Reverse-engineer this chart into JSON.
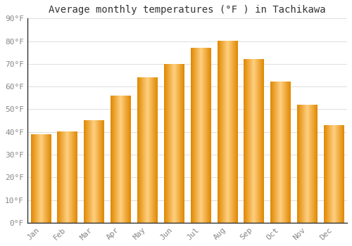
{
  "title": "Average monthly temperatures (°F ) in Tachikawa",
  "months": [
    "Jan",
    "Feb",
    "Mar",
    "Apr",
    "May",
    "Jun",
    "Jul",
    "Aug",
    "Sep",
    "Oct",
    "Nov",
    "Dec"
  ],
  "values": [
    39,
    40,
    45,
    56,
    64,
    70,
    77,
    80,
    72,
    62,
    52,
    43
  ],
  "bar_color_main": "#FFA500",
  "bar_color_light": "#FFD080",
  "bar_color_dark": "#E08800",
  "background_color": "#FFFFFF",
  "grid_color": "#DDDDDD",
  "spine_color": "#333333",
  "ylim": [
    0,
    90
  ],
  "yticks": [
    0,
    10,
    20,
    30,
    40,
    50,
    60,
    70,
    80,
    90
  ],
  "ytick_labels": [
    "0°F",
    "10°F",
    "20°F",
    "30°F",
    "40°F",
    "50°F",
    "60°F",
    "70°F",
    "80°F",
    "90°F"
  ],
  "title_fontsize": 10,
  "tick_fontsize": 8,
  "tick_color": "#888888",
  "bar_width": 0.75
}
